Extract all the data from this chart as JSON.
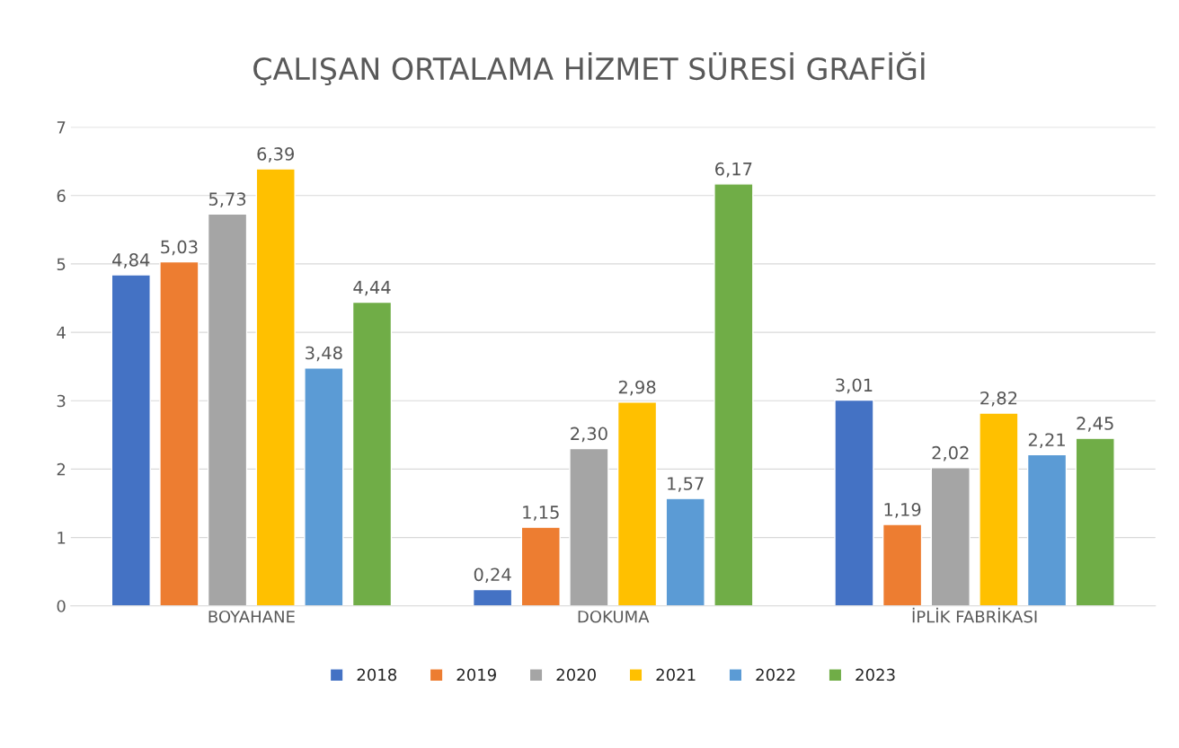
{
  "chart_data": {
    "type": "bar",
    "title": "ÇALIŞAN ORTALAMA HİZMET SÜRESİ GRAFİĞİ",
    "categories": [
      "BOYAHANE",
      "DOKUMA",
      "İPLİK FABRİKASI"
    ],
    "series": [
      {
        "name": "2018",
        "color": "#4472c4",
        "values": [
          4.84,
          0.24,
          3.01
        ],
        "value_labels": [
          "4,84",
          "0,24",
          "3,01"
        ]
      },
      {
        "name": "2019",
        "color": "#ed7d31",
        "values": [
          5.03,
          1.15,
          1.19
        ],
        "value_labels": [
          "5,03",
          "1,15",
          "1,19"
        ]
      },
      {
        "name": "2020",
        "color": "#a5a5a5",
        "values": [
          5.73,
          2.3,
          2.02
        ],
        "value_labels": [
          "5,73",
          "2,30",
          "2,02"
        ]
      },
      {
        "name": "2021",
        "color": "#ffc000",
        "values": [
          6.39,
          2.98,
          2.82
        ],
        "value_labels": [
          "6,39",
          "2,98",
          "2,82"
        ]
      },
      {
        "name": "2022",
        "color": "#5b9bd5",
        "values": [
          3.48,
          1.57,
          2.21
        ],
        "value_labels": [
          "3,48",
          "1,57",
          "2,21"
        ]
      },
      {
        "name": "2023",
        "color": "#70ad47",
        "values": [
          4.44,
          6.17,
          2.45
        ],
        "value_labels": [
          "4,44",
          "6,17",
          "2,45"
        ]
      }
    ],
    "ylim": [
      0,
      7
    ],
    "yticks": [
      0,
      1,
      2,
      3,
      4,
      5,
      6,
      7
    ],
    "grid": "y",
    "legend": "bottom"
  }
}
